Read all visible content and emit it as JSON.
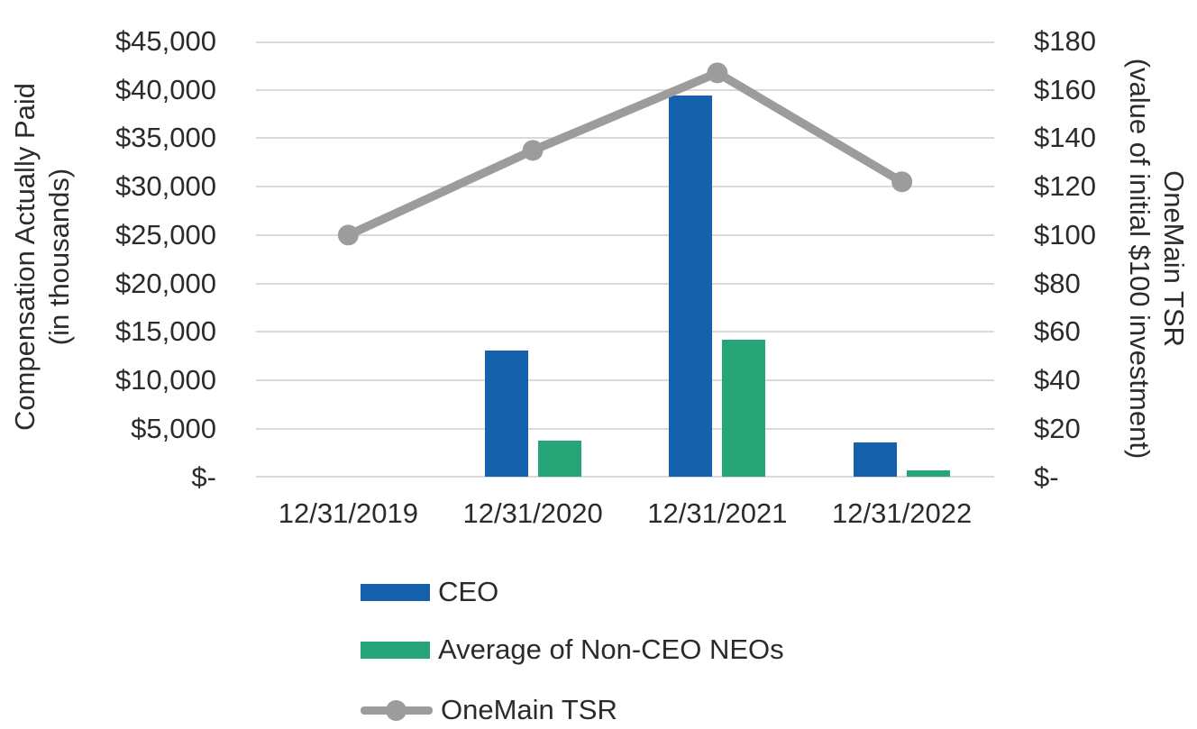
{
  "chart_data": {
    "type": "combo-bar-line",
    "categories": [
      "12/31/2019",
      "12/31/2020",
      "12/31/2021",
      "12/31/2022"
    ],
    "series": [
      {
        "name": "CEO",
        "type": "bar",
        "axis": "left",
        "color": "#1561AB",
        "values": [
          null,
          13100,
          39400,
          3600
        ]
      },
      {
        "name": "Average of Non-CEO NEOs",
        "type": "bar",
        "axis": "left",
        "color": "#26A578",
        "values": [
          null,
          3800,
          14200,
          700
        ]
      },
      {
        "name": "OneMain TSR",
        "type": "line",
        "axis": "right",
        "color": "#9C9C9C",
        "values": [
          100,
          135,
          167,
          122
        ]
      }
    ],
    "left_axis": {
      "title": "Compensation Actually Paid (in thousands)",
      "title_lines": [
        "Compensation Actually Paid",
        "(in thousands)"
      ],
      "min": 0,
      "max": 45000,
      "tick_labels": [
        "$45,000",
        "$40,000",
        "$35,000",
        "$30,000",
        "$25,000",
        "$20,000",
        "$15,000",
        "$10,000",
        "$5,000",
        "$-"
      ],
      "tick_values": [
        45000,
        40000,
        35000,
        30000,
        25000,
        20000,
        15000,
        10000,
        5000,
        0
      ]
    },
    "right_axis": {
      "title": "OneMain TSR (value of initial $100 investment)",
      "title_lines": [
        "OneMain TSR",
        "(value of initial $100 investment)"
      ],
      "min": 0,
      "max": 180,
      "tick_labels": [
        "$180",
        "$160",
        "$140",
        "$120",
        "$100",
        "$80",
        "$60",
        "$40",
        "$20",
        "$-"
      ],
      "tick_values": [
        180,
        160,
        140,
        120,
        100,
        80,
        60,
        40,
        20,
        0
      ]
    },
    "gridlines": true,
    "legend_position": "bottom-left"
  },
  "legend": {
    "items": [
      {
        "label": "CEO",
        "swatch": "bar",
        "color": "#1561AB"
      },
      {
        "label": "Average of Non-CEO NEOs",
        "swatch": "bar",
        "color": "#26A578"
      },
      {
        "label": "OneMain TSR",
        "swatch": "line",
        "color": "#9C9C9C"
      }
    ]
  },
  "colors": {
    "gridline": "#DADADA",
    "text": "#2B2B2B",
    "background": "#FFFFFF",
    "ceo_bar": "#1561AB",
    "neo_bar": "#26A578",
    "tsr_line": "#9C9C9C"
  }
}
